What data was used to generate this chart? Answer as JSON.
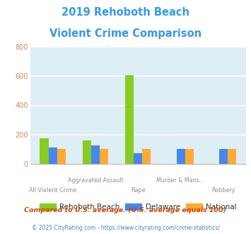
{
  "title_line1": "2019 Rehoboth Beach",
  "title_line2": "Violent Crime Comparison",
  "title_color": "#3399ee",
  "categories": [
    "All Violent Crime",
    "Aggravated Assault",
    "Rape",
    "Murder & Mans...",
    "Robbery"
  ],
  "rehoboth_values": [
    175,
    158,
    607,
    0,
    0
  ],
  "delaware_values": [
    113,
    127,
    75,
    100,
    100
  ],
  "national_values": [
    100,
    100,
    100,
    100,
    100
  ],
  "color_rehoboth": "#88cc22",
  "color_delaware": "#4488ee",
  "color_national": "#ffaa33",
  "ylim": [
    0,
    800
  ],
  "yticks": [
    0,
    200,
    400,
    600,
    800
  ],
  "background_color": "#ddeef4",
  "grid_color": "#ffffff",
  "legend_labels": [
    "Rehoboth Beach",
    "Delaware",
    "National"
  ],
  "label_row1": [
    "",
    "Aggravated Assault",
    "",
    "Murder & Mans...",
    ""
  ],
  "label_row2": [
    "All Violent Crime",
    "",
    "Rape",
    "",
    "Robbery"
  ],
  "footnote1": "Compared to U.S. average. (U.S. average equals 100)",
  "footnote2": "© 2025 CityRating.com - https://www.cityrating.com/crime-statistics/",
  "footnote1_color": "#cc4400",
  "footnote2_color": "#4488bb",
  "label_color": "#998899",
  "ytick_color": "#cc8866"
}
